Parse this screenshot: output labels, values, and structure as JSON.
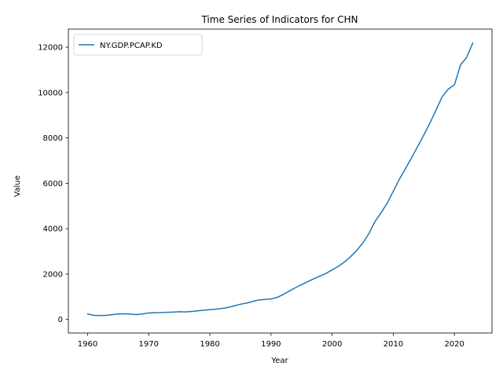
{
  "chart_data": {
    "type": "line",
    "title": "Time Series of Indicators for CHN",
    "xlabel": "Year",
    "ylabel": "Value",
    "xlim": [
      1956.85,
      2026.15
    ],
    "ylim": [
      -600,
      12800
    ],
    "xticks": [
      1960,
      1970,
      1980,
      1990,
      2000,
      2010,
      2020
    ],
    "yticks": [
      0,
      2000,
      4000,
      6000,
      8000,
      10000,
      12000
    ],
    "grid": false,
    "legend_position": "upper left",
    "series": [
      {
        "name": "NY.GDP.PCAP.KD",
        "color": "#1f77b4",
        "x": [
          1960,
          1961,
          1962,
          1963,
          1964,
          1965,
          1966,
          1967,
          1968,
          1969,
          1970,
          1971,
          1972,
          1973,
          1974,
          1975,
          1976,
          1977,
          1978,
          1979,
          1980,
          1981,
          1982,
          1983,
          1984,
          1985,
          1986,
          1987,
          1988,
          1989,
          1990,
          1991,
          1992,
          1993,
          1994,
          1995,
          1996,
          1997,
          1998,
          1999,
          2000,
          2001,
          2002,
          2003,
          2004,
          2005,
          2006,
          2007,
          2008,
          2009,
          2010,
          2011,
          2012,
          2013,
          2014,
          2015,
          2016,
          2017,
          2018,
          2019,
          2020,
          2021,
          2022,
          2023
        ],
        "values": [
          240,
          180,
          170,
          180,
          210,
          240,
          250,
          230,
          215,
          245,
          285,
          295,
          300,
          315,
          320,
          340,
          330,
          350,
          380,
          405,
          430,
          450,
          485,
          530,
          600,
          670,
          720,
          790,
          860,
          880,
          900,
          970,
          1100,
          1250,
          1400,
          1530,
          1660,
          1790,
          1910,
          2030,
          2180,
          2340,
          2530,
          2760,
          3030,
          3360,
          3780,
          4310,
          4700,
          5120,
          5650,
          6180,
          6650,
          7130,
          7630,
          8130,
          8660,
          9230,
          9820,
          10150,
          10340,
          11220,
          11550,
          12180
        ]
      }
    ]
  }
}
